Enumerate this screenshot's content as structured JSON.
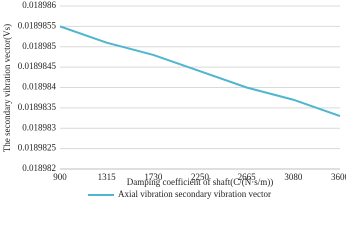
{
  "chart_data": {
    "type": "line",
    "y_label": "The secondary vibration vector(Vs)",
    "x_label": "Damping coefficient of shaft(C/(N·s/m))",
    "categories": [
      "900",
      "1315",
      "1730",
      "2250",
      "2665",
      "3080",
      "3600"
    ],
    "series": [
      {
        "name": "Axial vibration secondary vibration vector",
        "color": "#4fb6d0",
        "values": [
          0.0189855,
          0.0189851,
          0.0189848,
          0.0189844,
          0.018984,
          0.0189837,
          0.0189833
        ]
      }
    ],
    "ylim": [
      0.018982,
      0.018986
    ],
    "yticks": [
      0.018982,
      0.0189825,
      0.018983,
      0.0189835,
      0.018984,
      0.0189845,
      0.018985,
      0.0189855,
      0.018986
    ],
    "grid": true
  }
}
